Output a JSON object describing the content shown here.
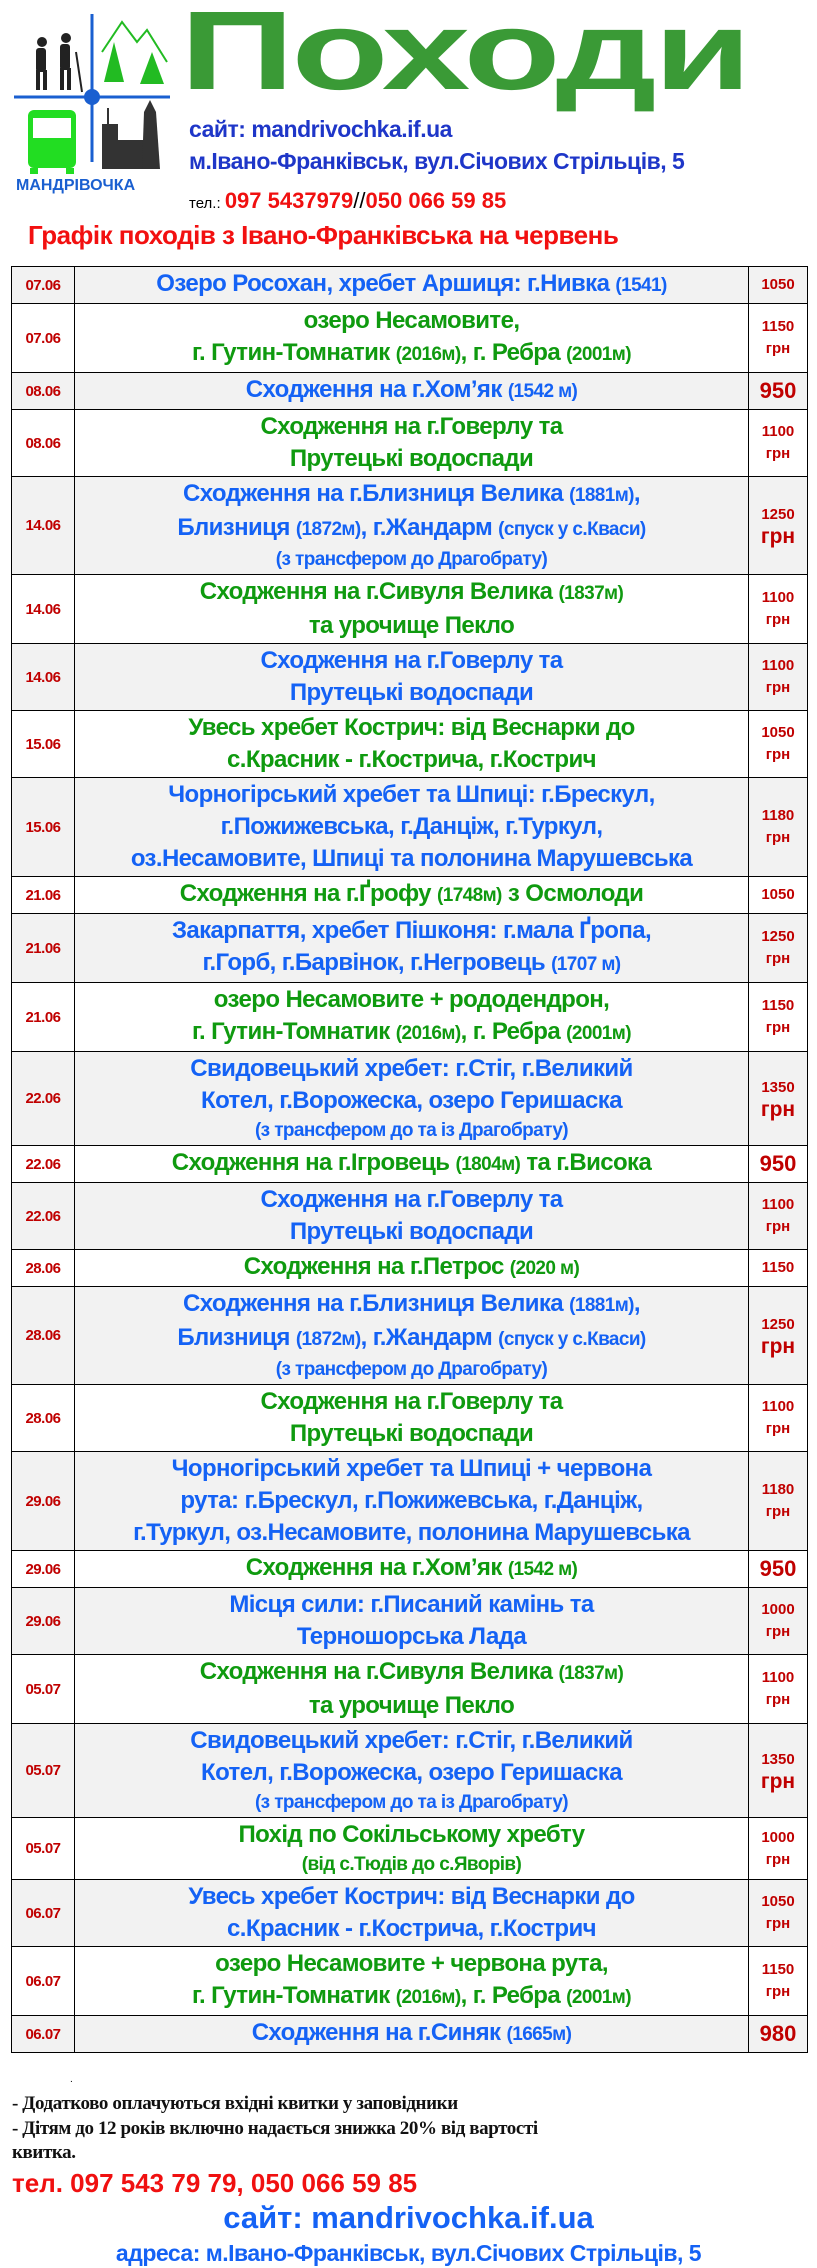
{
  "header": {
    "logo_text": "МАНДРІВОЧКА",
    "title": "Походи",
    "site": "сайт:  mandrivochka.if.ua",
    "address": "м.Івано-Франківськ, вул.Січових Стрільців, 5",
    "tel_label": "тел.: ",
    "phone1": "097 5437979",
    "phone_sep": "//",
    "phone2": "050 066 59 85",
    "schedule_title": "Графік походів з Івано-Франківська на червень"
  },
  "colors": {
    "blue": "#1462f5",
    "green": "#0f9a0f",
    "date_red": "#c00000",
    "title_green": "#3a9a36",
    "row_gray": "#f2f2f2"
  },
  "schedule": [
    {
      "date": "07.06",
      "color": "blue",
      "lines": [
        [
          "Озеро Росохан, хребет Аршиця: г.Нивка ",
          "(1541)"
        ]
      ],
      "price": "1050",
      "unit": ""
    },
    {
      "date": "07.06",
      "color": "green",
      "lines": [
        [
          "озеро Несамовите,"
        ],
        [
          "г. Гутин-Томнатик ",
          "(2016м)",
          ", г. Ребра ",
          "(2001м)"
        ]
      ],
      "price": "1150",
      "unit": "грн"
    },
    {
      "date": "08.06",
      "color": "blue",
      "lines": [
        [
          "Сходження на г.Хом’як ",
          "(1542 м)"
        ]
      ],
      "price": "950",
      "unit": ""
    },
    {
      "date": "08.06",
      "color": "green",
      "lines": [
        [
          "Сходження на г.Говерлу та"
        ],
        [
          "Прутецькі водоспади"
        ]
      ],
      "price": "1100",
      "unit": "грн"
    },
    {
      "date": "14.06",
      "color": "blue",
      "lines": [
        [
          "Сходження на г.Близниця Велика ",
          "(1881м)",
          ","
        ],
        [
          "Близниця ",
          "(1872м)",
          ", г.Жандарм ",
          "(спуск у с.Кваси)"
        ],
        [
          "(з трансфером до Драгобрату)"
        ]
      ],
      "price": "1250",
      "unit": "грн"
    },
    {
      "date": "14.06",
      "color": "green",
      "lines": [
        [
          "Сходження на г.Сивуля Велика ",
          "(1837м)"
        ],
        [
          "та урочище Пекло"
        ]
      ],
      "price": "1100",
      "unit": "грн"
    },
    {
      "date": "14.06",
      "color": "blue",
      "lines": [
        [
          "Сходження на г.Говерлу та"
        ],
        [
          "Прутецькі водоспади"
        ]
      ],
      "price": "1100",
      "unit": "грн"
    },
    {
      "date": "15.06",
      "color": "green",
      "lines": [
        [
          "Увесь хребет Кострич: від Веснарки до"
        ],
        [
          "с.Красник - г.Кострича, г.Кострич"
        ]
      ],
      "price": "1050",
      "unit": "грн"
    },
    {
      "date": "15.06",
      "color": "blue",
      "lines": [
        [
          "Чорногірський хребет та Шпиці: г.Брескул,"
        ],
        [
          "г.Пожижевська, г.Данціж, г.Туркул,"
        ],
        [
          "оз.Несамовите, Шпиці та полонина Марушевська"
        ]
      ],
      "price": "1180",
      "unit": "грн"
    },
    {
      "date": "21.06",
      "color": "green",
      "lines": [
        [
          "Сходження на г.Ґрофу ",
          "(1748м)",
          " з Осмолоди"
        ]
      ],
      "price": "1050",
      "unit": ""
    },
    {
      "date": "21.06",
      "color": "blue",
      "lines": [
        [
          "Закарпаття, хребет Пішконя: г.мала Ґропа,"
        ],
        [
          "г.Горб, г.Барвінок, г.Негровець ",
          "(1707 м)"
        ]
      ],
      "price": "1250",
      "unit": "грн"
    },
    {
      "date": "21.06",
      "color": "green",
      "lines": [
        [
          "озеро Несамовите + рододендрон,"
        ],
        [
          "г. Гутин-Томнатик ",
          "(2016м)",
          ", г. Ребра ",
          "(2001м)"
        ]
      ],
      "price": "1150",
      "unit": "грн"
    },
    {
      "date": "22.06",
      "color": "blue",
      "lines": [
        [
          "Свидовецький хребет: г.Стіг, г.Великий"
        ],
        [
          "Котел, г.Ворожеска, озеро Геришаска"
        ],
        [
          "(з трансфером до та із Драгобрату)"
        ]
      ],
      "price": "1350",
      "unit": "грн"
    },
    {
      "date": "22.06",
      "color": "green",
      "lines": [
        [
          "Сходження на г.Ігровець ",
          "(1804м)",
          " та г.Висока"
        ]
      ],
      "price": "950",
      "unit": ""
    },
    {
      "date": "22.06",
      "color": "blue",
      "lines": [
        [
          "Сходження на г.Говерлу та"
        ],
        [
          "Прутецькі водоспади"
        ]
      ],
      "price": "1100",
      "unit": "грн"
    },
    {
      "date": "28.06",
      "color": "green",
      "lines": [
        [
          "Сходження на г.Петрос ",
          "(2020 м)"
        ]
      ],
      "price": "1150",
      "unit": ""
    },
    {
      "date": "28.06",
      "color": "blue",
      "lines": [
        [
          "Сходження на г.Близниця Велика ",
          "(1881м)",
          ","
        ],
        [
          "Близниця ",
          "(1872м)",
          ", г.Жандарм ",
          "(спуск у с.Кваси)"
        ],
        [
          "(з трансфером до Драгобрату)"
        ]
      ],
      "price": "1250",
      "unit": "грн"
    },
    {
      "date": "28.06",
      "color": "green",
      "lines": [
        [
          "Сходження на г.Говерлу та"
        ],
        [
          "Прутецькі водоспади"
        ]
      ],
      "price": "1100",
      "unit": "грн"
    },
    {
      "date": "29.06",
      "color": "blue",
      "lines": [
        [
          "Чорногірський хребет та Шпиці + червона"
        ],
        [
          "рута: г.Брескул, г.Пожижевська, г.Данціж,"
        ],
        [
          "г.Туркул, оз.Несамовите, полонина Марушевська"
        ]
      ],
      "price": "1180",
      "unit": "грн"
    },
    {
      "date": "29.06",
      "color": "green",
      "lines": [
        [
          "Сходження на г.Хом’як ",
          "(1542 м)"
        ]
      ],
      "price": "950",
      "unit": ""
    },
    {
      "date": "29.06",
      "color": "blue",
      "lines": [
        [
          "Місця сили: г.Писаний камінь та"
        ],
        [
          "Терношорська Лада"
        ]
      ],
      "price": "1000",
      "unit": "грн"
    },
    {
      "date": "05.07",
      "color": "green",
      "lines": [
        [
          "Сходження на г.Сивуля Велика ",
          "(1837м)"
        ],
        [
          "та урочище Пекло"
        ]
      ],
      "price": "1100",
      "unit": "грн"
    },
    {
      "date": "05.07",
      "color": "blue",
      "lines": [
        [
          "Свидовецький хребет: г.Стіг, г.Великий"
        ],
        [
          "Котел, г.Ворожеска, озеро Геришаска"
        ],
        [
          "(з трансфером до та із Драгобрату)"
        ]
      ],
      "price": "1350",
      "unit": "грн"
    },
    {
      "date": "05.07",
      "color": "green",
      "lines": [
        [
          "Похід по Сокільському хребту"
        ],
        [
          "(від с.Тюдів до с.Яворів)"
        ]
      ],
      "price": "1000",
      "unit": "грн"
    },
    {
      "date": "06.07",
      "color": "blue",
      "lines": [
        [
          "Увесь хребет Кострич: від Веснарки до"
        ],
        [
          "с.Красник - г.Кострича, г.Кострич"
        ]
      ],
      "price": "1050",
      "unit": "грн"
    },
    {
      "date": "06.07",
      "color": "green",
      "lines": [
        [
          "озеро Несамовите + червона рута,"
        ],
        [
          "г. Гутин-Томнатик ",
          "(2016м)",
          ", г. Ребра ",
          "(2001м)"
        ]
      ],
      "price": "1150",
      "unit": "грн"
    },
    {
      "date": "06.07",
      "color": "blue",
      "lines": [
        [
          "Сходження на г.Синяк ",
          "(1665м)"
        ]
      ],
      "price": "980",
      "unit": ""
    }
  ],
  "footer": {
    "dot": ".",
    "note1": "- Додатково оплачуються вхідні квитки у заповідники",
    "note2": "- Дітям до 12 років включно надається знижка 20% від вартості",
    "note3": "квитка.",
    "phones": "тел. 097 543 79 79,  050 066 59 85",
    "site": "сайт:  mandrivochka.if.ua",
    "address": "адреса: м.Івано-Франківськ, вул.Січових Стрільців, 5"
  }
}
